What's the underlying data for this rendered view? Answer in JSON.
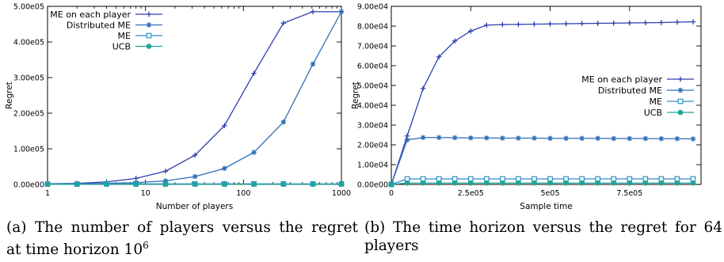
{
  "captions": {
    "a": {
      "line1": "(a) The number of players versus the regret",
      "line2_prefix": "at time horizon 10",
      "line2_sup": "6"
    },
    "b": {
      "line1": "(b) The time horizon versus the regret for 64",
      "line2": "players"
    }
  },
  "chart_data": [
    {
      "type": "line",
      "title": "",
      "xlabel": "Number of players",
      "ylabel": "Regret",
      "xscale": "log",
      "xlim": [
        1,
        1000
      ],
      "ylim": [
        0,
        500000
      ],
      "xticks": [
        {
          "v": 1,
          "label": "1"
        },
        {
          "v": 10,
          "label": "10"
        },
        {
          "v": 100,
          "label": "100"
        },
        {
          "v": 1000,
          "label": "1000"
        }
      ],
      "yticks": [
        {
          "v": 0,
          "label": "0.00e00"
        },
        {
          "v": 100000,
          "label": "1.00e05"
        },
        {
          "v": 200000,
          "label": "2.00e05"
        },
        {
          "v": 300000,
          "label": "3.00e05"
        },
        {
          "v": 400000,
          "label": "4.00e05"
        },
        {
          "v": 500000,
          "label": "5.00e05"
        }
      ],
      "legend_position": "top-left",
      "x": [
        1,
        2,
        4,
        8,
        16,
        32,
        64,
        128,
        256,
        512,
        1000
      ],
      "series": [
        {
          "name": "ME on each player",
          "color": "#2e3fb0",
          "marker": "plus",
          "values": [
            2000,
            3000,
            7000,
            17000,
            37000,
            82000,
            165000,
            312000,
            453000,
            485000,
            485000
          ]
        },
        {
          "name": "Distributed ME",
          "color": "#2e6fb8",
          "marker": "star",
          "values": [
            1500,
            2000,
            3000,
            5000,
            10000,
            22000,
            45000,
            90000,
            175000,
            338000,
            485000
          ]
        },
        {
          "name": "ME",
          "color": "#2a8fc8",
          "marker": "square",
          "values": [
            1000,
            1000,
            1500,
            1500,
            1500,
            1500,
            1500,
            1500,
            1500,
            1500,
            1500
          ]
        },
        {
          "name": "UCB",
          "color": "#1fa59a",
          "marker": "circle",
          "values": [
            500,
            500,
            500,
            500,
            500,
            500,
            500,
            500,
            500,
            500,
            500
          ]
        }
      ]
    },
    {
      "type": "line",
      "title": "",
      "xlabel": "Sample time",
      "ylabel": "Regret",
      "xlim": [
        0,
        975000
      ],
      "ylim": [
        0,
        90000
      ],
      "xticks": [
        {
          "v": 0,
          "label": "0"
        },
        {
          "v": 250000,
          "label": "2.5e05"
        },
        {
          "v": 500000,
          "label": "5e05"
        },
        {
          "v": 750000,
          "label": "7.5e05"
        }
      ],
      "yticks": [
        {
          "v": 0,
          "label": "0.00e00"
        },
        {
          "v": 10000,
          "label": "1.00e04"
        },
        {
          "v": 20000,
          "label": "2.00e04"
        },
        {
          "v": 30000,
          "label": "3.00e04"
        },
        {
          "v": 40000,
          "label": "4.00e04"
        },
        {
          "v": 50000,
          "label": "5.00e04"
        },
        {
          "v": 60000,
          "label": "6.00e04"
        },
        {
          "v": 70000,
          "label": "7.00e04"
        },
        {
          "v": 80000,
          "label": "8.00e04"
        },
        {
          "v": 90000,
          "label": "9.00e04"
        }
      ],
      "legend_position": "middle-right",
      "x": [
        0,
        50000,
        100000,
        150000,
        200000,
        250000,
        300000,
        350000,
        400000,
        450000,
        500000,
        550000,
        600000,
        650000,
        700000,
        750000,
        800000,
        850000,
        900000,
        950000
      ],
      "series": [
        {
          "name": "ME on each player",
          "color": "#2e3fb0",
          "marker": "plus",
          "values": [
            0,
            24500,
            48500,
            64500,
            72500,
            77500,
            80500,
            80800,
            80900,
            81000,
            81100,
            81200,
            81300,
            81400,
            81500,
            81600,
            81700,
            81800,
            82000,
            82200
          ]
        },
        {
          "name": "Distributed ME",
          "color": "#2e6fb8",
          "marker": "star",
          "values": [
            0,
            22500,
            23700,
            23700,
            23600,
            23500,
            23500,
            23400,
            23400,
            23400,
            23300,
            23300,
            23300,
            23300,
            23200,
            23200,
            23200,
            23100,
            23100,
            23000
          ]
        },
        {
          "name": "ME",
          "color": "#2a8fc8",
          "marker": "square",
          "values": [
            0,
            2800,
            2800,
            2800,
            2800,
            2800,
            2800,
            2800,
            2800,
            2800,
            2800,
            2800,
            2800,
            2800,
            2800,
            2800,
            2800,
            2800,
            2800,
            2800
          ]
        },
        {
          "name": "UCB",
          "color": "#1fa59a",
          "marker": "circle",
          "values": [
            0,
            700,
            700,
            700,
            700,
            700,
            700,
            700,
            700,
            700,
            700,
            700,
            700,
            700,
            700,
            700,
            700,
            700,
            700,
            700
          ]
        }
      ]
    }
  ]
}
